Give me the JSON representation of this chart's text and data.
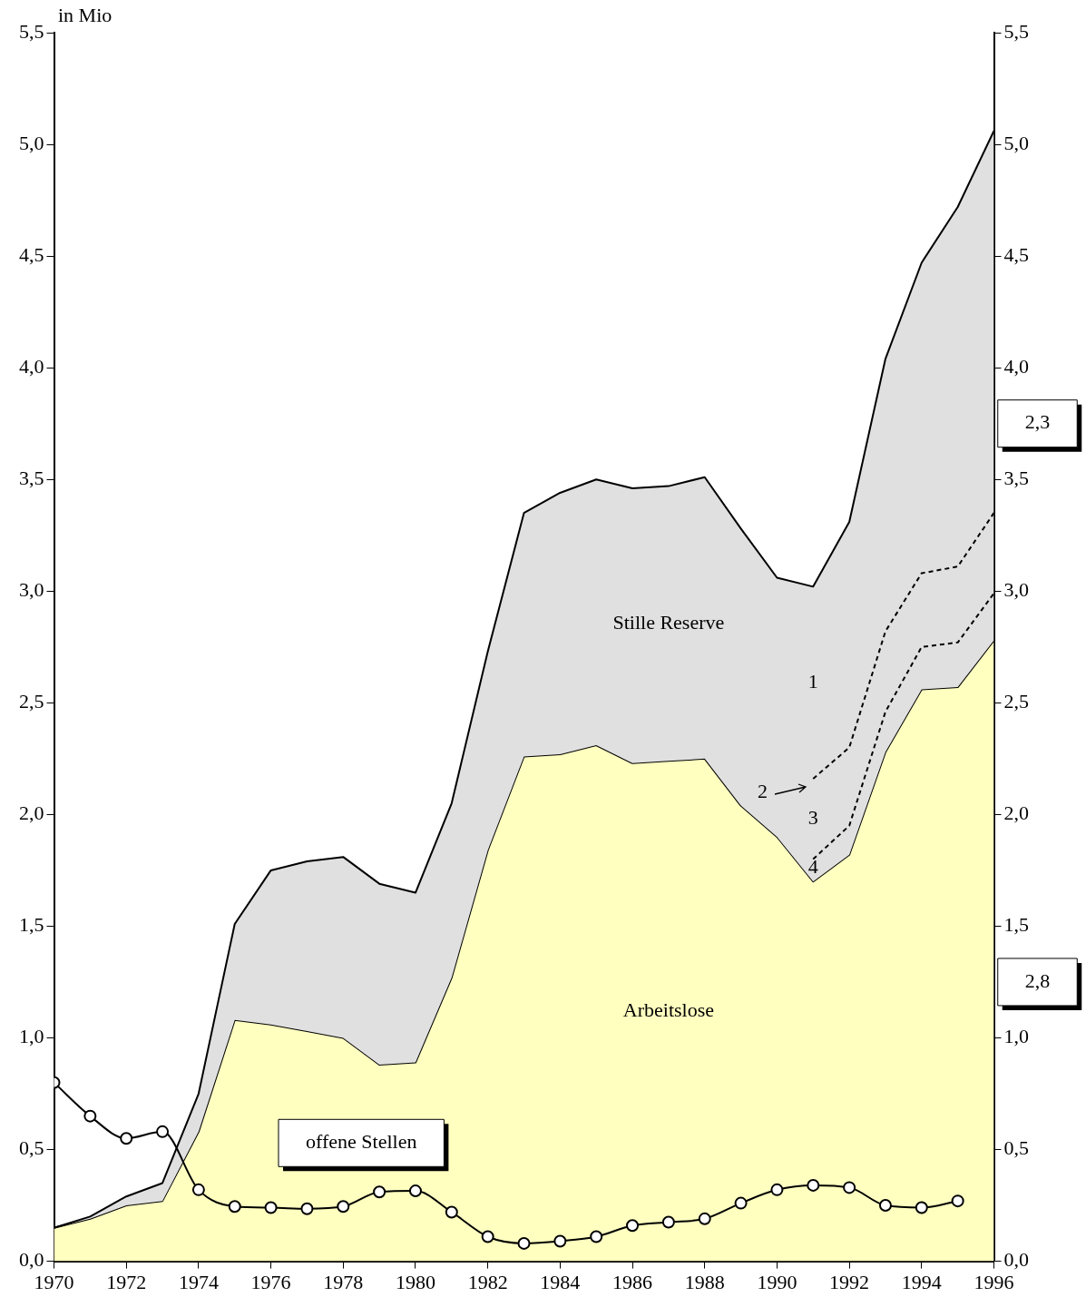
{
  "chart_data": {
    "type": "area",
    "ylabel": "in Mio",
    "x": [
      1970,
      1971,
      1972,
      1973,
      1974,
      1975,
      1976,
      1977,
      1978,
      1979,
      1980,
      1981,
      1982,
      1983,
      1984,
      1985,
      1986,
      1987,
      1988,
      1989,
      1990,
      1991,
      1992,
      1993,
      1994,
      1995,
      1996
    ],
    "series": [
      {
        "name": "Arbeitslose",
        "type": "area",
        "color": "#ffffc0",
        "values": [
          0.15,
          0.19,
          0.25,
          0.27,
          0.58,
          1.08,
          1.06,
          1.03,
          1.0,
          0.88,
          0.89,
          1.27,
          1.84,
          2.26,
          2.27,
          2.31,
          2.23,
          2.24,
          2.25,
          2.04,
          1.9,
          1.7,
          1.82,
          2.28,
          2.56,
          2.57,
          2.78
        ]
      },
      {
        "name": "Stille Reserve",
        "type": "area",
        "color": "#e0e0e0",
        "values": [
          0.15,
          0.2,
          0.29,
          0.35,
          0.75,
          1.51,
          1.75,
          1.79,
          1.81,
          1.69,
          1.65,
          2.05,
          2.73,
          3.35,
          3.44,
          3.5,
          3.46,
          3.47,
          3.51,
          3.28,
          3.06,
          3.02,
          3.31,
          4.04,
          4.47,
          4.72,
          5.06
        ]
      },
      {
        "type": "line",
        "color": "#000000",
        "line_style": "dashed",
        "marker": "none",
        "x": [
          1991,
          1992,
          1993,
          1994,
          1995,
          1996
        ],
        "values": [
          2.16,
          2.3,
          2.82,
          3.08,
          3.11,
          3.35
        ]
      },
      {
        "type": "line",
        "color": "#000000",
        "line_style": "dashed",
        "marker": "none",
        "x": [
          1991,
          1992,
          1993,
          1994,
          1995,
          1996
        ],
        "values": [
          1.8,
          1.95,
          2.46,
          2.75,
          2.77,
          2.99
        ]
      },
      {
        "name": "offene Stellen",
        "type": "line",
        "color": "#000000",
        "marker": "circle",
        "x": [
          1970,
          1971,
          1972,
          1973,
          1974,
          1975,
          1976,
          1977,
          1978,
          1979,
          1980,
          1981,
          1982,
          1983,
          1984,
          1985,
          1986,
          1987,
          1988,
          1989,
          1990,
          1991,
          1992,
          1993,
          1994,
          1995
        ],
        "values": [
          0.8,
          0.65,
          0.55,
          0.58,
          0.32,
          0.245,
          0.24,
          0.235,
          0.245,
          0.31,
          0.315,
          0.22,
          0.11,
          0.08,
          0.09,
          0.11,
          0.16,
          0.175,
          0.19,
          0.26,
          0.32,
          0.34,
          0.33,
          0.25,
          0.24,
          0.27
        ]
      }
    ],
    "xlim": [
      1970,
      1996
    ],
    "xticks": [
      1970,
      1972,
      1974,
      1976,
      1978,
      1980,
      1982,
      1984,
      1986,
      1988,
      1990,
      1992,
      1994,
      1996
    ],
    "ylim": [
      0,
      5.5
    ],
    "yticks": [
      {
        "value": 0,
        "label": "0,0"
      },
      {
        "value": 0.5,
        "label": "0,5"
      },
      {
        "value": 1,
        "label": "1,0"
      },
      {
        "value": 1.5,
        "label": "1,5"
      },
      {
        "value": 2,
        "label": "2,0"
      },
      {
        "value": 2.5,
        "label": "2,5"
      },
      {
        "value": 3,
        "label": "3,0"
      },
      {
        "value": 3.5,
        "label": "3,5"
      },
      {
        "value": 4,
        "label": "4,0"
      },
      {
        "value": 4.5,
        "label": "4,5"
      },
      {
        "value": 5,
        "label": "5,0"
      },
      {
        "value": 5.5,
        "label": "5,5"
      }
    ],
    "y2lim": [
      0,
      5.5
    ],
    "y2ticks": [
      {
        "value": 0,
        "label": "0,0"
      },
      {
        "value": 0.5,
        "label": "0,5"
      },
      {
        "value": 1,
        "label": "1,0"
      },
      {
        "value": 1.5,
        "label": "1,5"
      },
      {
        "value": 2,
        "label": "2,0"
      },
      {
        "value": 2.5,
        "label": "2,5"
      },
      {
        "value": 3,
        "label": "3,0"
      },
      {
        "value": 3.5,
        "label": "3,5"
      },
      {
        "value": 4,
        "label": "4,0"
      },
      {
        "value": 4.5,
        "label": "4,5"
      },
      {
        "value": 5,
        "label": "5,0"
      },
      {
        "value": 5.5,
        "label": "5,5"
      }
    ],
    "annotations": [
      "1",
      "2",
      "3",
      "4",
      "2,3",
      "2,8"
    ],
    "grid": false,
    "legend": false
  }
}
